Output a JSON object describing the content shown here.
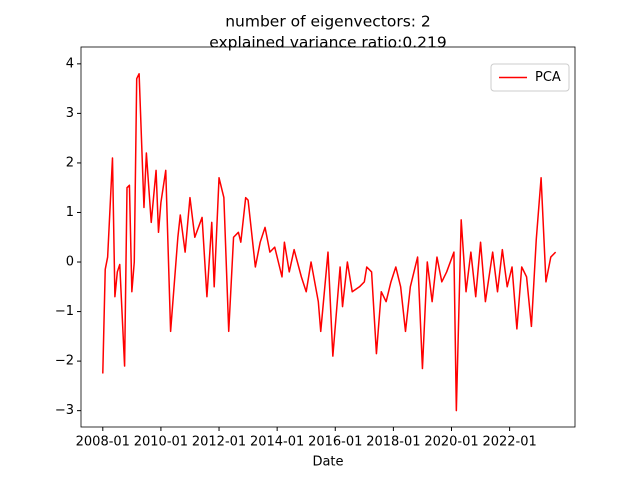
{
  "chart_data": {
    "type": "line",
    "title": "number of eigenvectors: 2",
    "subtitle": "explained variance ratio:0.219",
    "x_label": "Date",
    "x": [
      "2008-01",
      "2008-02",
      "2008-03",
      "2008-05",
      "2008-06",
      "2008-07",
      "2008-08",
      "2008-10",
      "2008-11",
      "2008-12",
      "2009-01",
      "2009-02",
      "2009-03",
      "2009-04",
      "2009-06",
      "2009-07",
      "2009-09",
      "2009-11",
      "2009-12",
      "2010-01",
      "2010-03",
      "2010-05",
      "2010-08",
      "2010-09",
      "2010-11",
      "2011-01",
      "2011-03",
      "2011-06",
      "2011-08",
      "2011-10",
      "2011-11",
      "2012-01",
      "2012-03",
      "2012-05",
      "2012-07",
      "2012-09",
      "2012-10",
      "2012-12",
      "2013-01",
      "2013-04",
      "2013-06",
      "2013-08",
      "2013-10",
      "2013-12",
      "2014-03",
      "2014-04",
      "2014-06",
      "2014-08",
      "2014-11",
      "2015-01",
      "2015-03",
      "2015-06",
      "2015-07",
      "2015-10",
      "2015-12",
      "2016-03",
      "2016-04",
      "2016-06",
      "2016-08",
      "2016-11",
      "2017-01",
      "2017-02",
      "2017-04",
      "2017-06",
      "2017-08",
      "2017-10",
      "2017-12",
      "2018-02",
      "2018-04",
      "2018-06",
      "2018-08",
      "2018-11",
      "2019-01",
      "2019-03",
      "2019-05",
      "2019-07",
      "2019-09",
      "2019-11",
      "2020-02",
      "2020-03",
      "2020-05",
      "2020-07",
      "2020-09",
      "2020-11",
      "2021-01",
      "2021-03",
      "2021-06",
      "2021-08",
      "2021-10",
      "2021-12",
      "2022-02",
      "2022-04",
      "2022-06",
      "2022-08",
      "2022-10",
      "2022-12",
      "2023-02",
      "2023-04",
      "2023-06",
      "2023-08"
    ],
    "series": [
      {
        "name": "PCA",
        "color": "#ff0000",
        "values": [
          -2.25,
          -0.15,
          0.1,
          2.1,
          -0.7,
          -0.2,
          -0.05,
          -2.1,
          1.5,
          1.55,
          -0.6,
          0.0,
          3.7,
          3.8,
          1.1,
          2.2,
          0.8,
          1.85,
          0.6,
          1.2,
          1.85,
          -1.4,
          0.5,
          0.95,
          0.2,
          1.3,
          0.5,
          0.9,
          -0.7,
          0.8,
          -0.5,
          1.7,
          1.3,
          -1.4,
          0.5,
          0.6,
          0.4,
          1.3,
          1.25,
          -0.1,
          0.4,
          0.7,
          0.2,
          0.3,
          -0.3,
          0.4,
          -0.2,
          0.25,
          -0.3,
          -0.6,
          0.0,
          -0.8,
          -1.4,
          0.2,
          -1.9,
          -0.1,
          -0.9,
          0.0,
          -0.6,
          -0.5,
          -0.4,
          -0.1,
          -0.2,
          -1.85,
          -0.6,
          -0.8,
          -0.4,
          -0.1,
          -0.5,
          -1.4,
          -0.5,
          0.1,
          -2.15,
          0.0,
          -0.8,
          0.1,
          -0.4,
          -0.2,
          0.2,
          -3.0,
          0.85,
          -0.6,
          0.2,
          -0.7,
          0.4,
          -0.8,
          0.2,
          -0.6,
          0.25,
          -0.5,
          -0.1,
          -1.35,
          -0.1,
          -0.3,
          -1.3,
          0.45,
          1.7,
          -0.4,
          0.1,
          0.2
        ]
      }
    ],
    "xlim": [
      "2007-04",
      "2024-04"
    ],
    "xticks": [
      "2008-01",
      "2010-01",
      "2012-01",
      "2014-01",
      "2016-01",
      "2018-01",
      "2020-01",
      "2022-01"
    ],
    "ylim": [
      -3.33,
      4.34
    ],
    "yticks": [
      {
        "value": -3,
        "label": "−3"
      },
      {
        "value": -2,
        "label": "−2"
      },
      {
        "value": -1,
        "label": "−1"
      },
      0,
      1,
      2,
      3,
      4
    ],
    "legend": "upper right"
  }
}
